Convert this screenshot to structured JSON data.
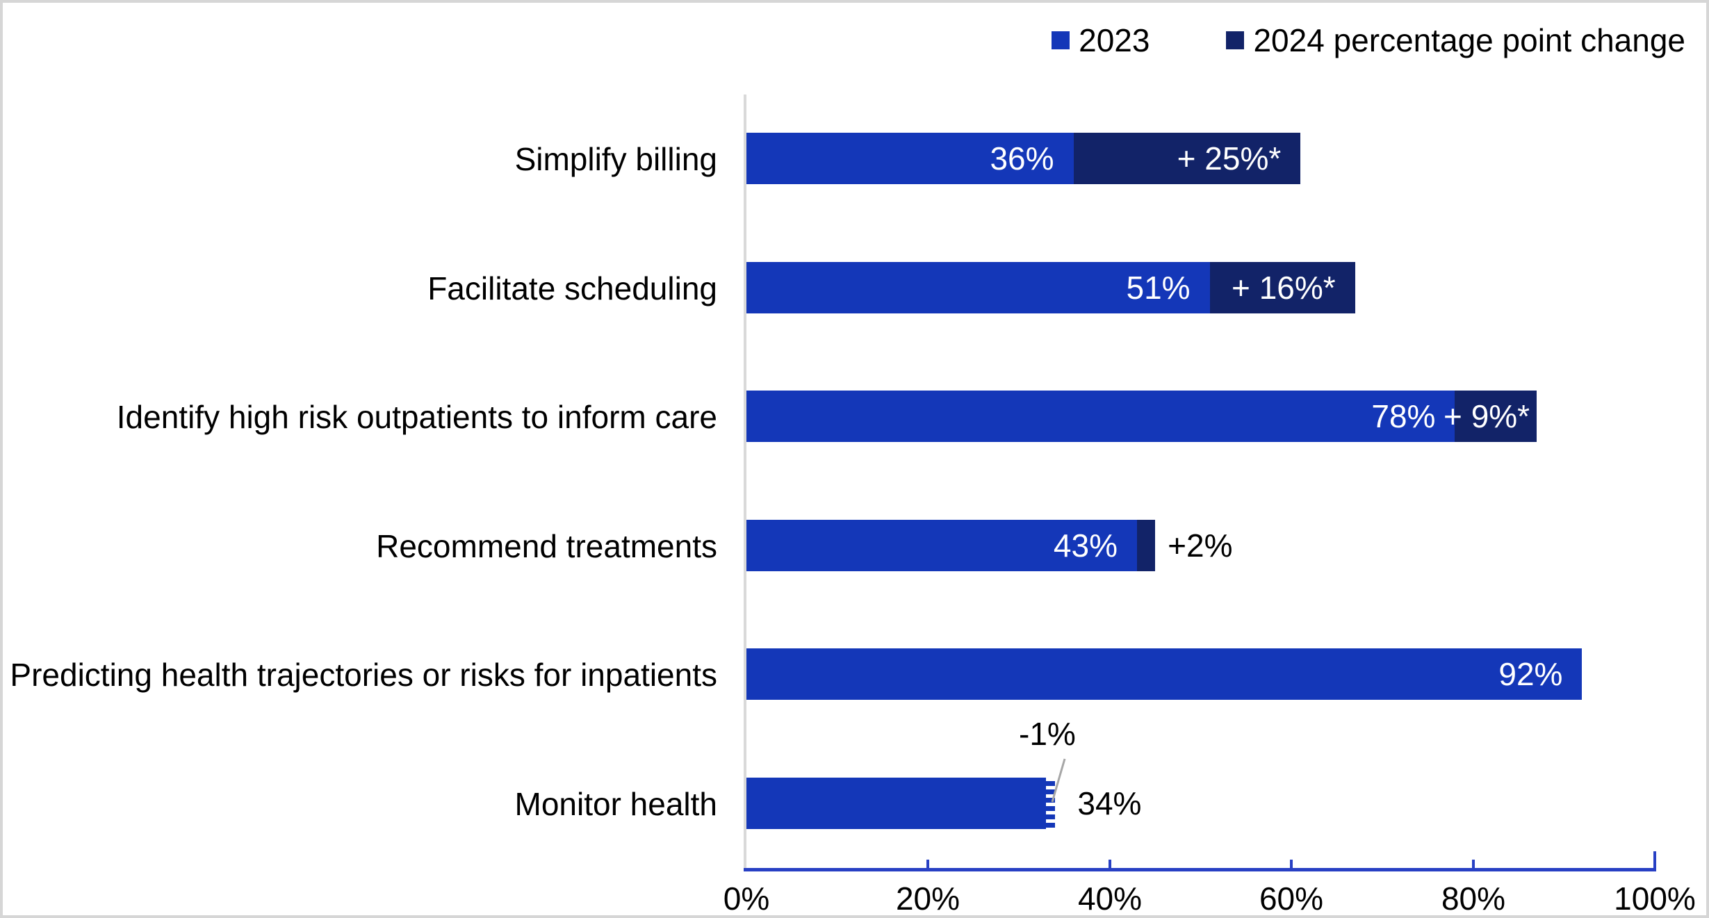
{
  "chart_data": {
    "type": "bar",
    "orientation": "horizontal",
    "stacked": true,
    "title": "",
    "categories": [
      "Simplify billing",
      "Facilitate scheduling",
      "Identify high risk outpatients to inform care",
      "Recommend treatments",
      "Predicting health trajectories or risks for inpatients",
      "Monitor health"
    ],
    "series": [
      {
        "name": "2023",
        "values": [
          36,
          51,
          78,
          43,
          92,
          34
        ]
      },
      {
        "name": "2024 percentage point change",
        "values": [
          25,
          16,
          9,
          2,
          0,
          -1
        ]
      }
    ],
    "data_labels": [
      [
        "36%",
        "+ 25%*"
      ],
      [
        "51%",
        "+ 16%*"
      ],
      [
        "78%",
        "+ 9%*"
      ],
      [
        "43%",
        "+2%"
      ],
      [
        "92%",
        ""
      ],
      [
        "34%",
        "-1%"
      ]
    ],
    "x_ticks": [
      "0%",
      "20%",
      "40%",
      "60%",
      "80%",
      "100%"
    ],
    "xlim": [
      0,
      100
    ],
    "grid": false,
    "legend_position": "top-right"
  },
  "colors": {
    "series_2023": "#1437b8",
    "series_change": "#122368",
    "axis_line": "#2840c4",
    "baseline_gray": "#d9d9d9",
    "leader_line": "#a6a6a6",
    "frame_border": "#d6d6d6",
    "bar_label_text": "#ffffff",
    "text": "#000000"
  }
}
